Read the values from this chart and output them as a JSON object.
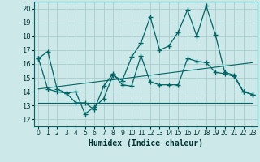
{
  "xlabel": "Humidex (Indice chaleur)",
  "ylabel": "",
  "xlim": [
    -0.5,
    23.5
  ],
  "ylim": [
    11.5,
    20.5
  ],
  "yticks": [
    12,
    13,
    14,
    15,
    16,
    17,
    18,
    19,
    20
  ],
  "xticks": [
    0,
    1,
    2,
    3,
    4,
    5,
    6,
    7,
    8,
    9,
    10,
    11,
    12,
    13,
    14,
    15,
    16,
    17,
    18,
    19,
    20,
    21,
    22,
    23
  ],
  "bg_color": "#cce8e8",
  "grid_color": "#aacccc",
  "line_color": "#006666",
  "line1_x": [
    0,
    1,
    2,
    3,
    4,
    5,
    6,
    7,
    8,
    9,
    10,
    11,
    12,
    13,
    14,
    15,
    16,
    17,
    18,
    19,
    20,
    21,
    22,
    23
  ],
  "line1_y": [
    16.4,
    16.9,
    14.2,
    13.9,
    14.0,
    12.4,
    12.9,
    13.5,
    15.2,
    14.8,
    16.5,
    17.5,
    19.4,
    17.0,
    17.3,
    18.3,
    19.9,
    18.0,
    20.2,
    18.1,
    15.4,
    15.2,
    14.0,
    13.8
  ],
  "line2_x": [
    0,
    1,
    2,
    3,
    4,
    5,
    6,
    7,
    8,
    9,
    10,
    11,
    12,
    13,
    14,
    15,
    16,
    17,
    18,
    19,
    20,
    21,
    22,
    23
  ],
  "line2_y": [
    16.4,
    14.2,
    14.0,
    13.9,
    13.2,
    13.2,
    12.7,
    14.4,
    15.3,
    14.5,
    14.4,
    16.6,
    14.7,
    14.5,
    14.5,
    14.5,
    16.4,
    16.2,
    16.1,
    15.4,
    15.3,
    15.1,
    14.0,
    13.8
  ],
  "line3_x": [
    0,
    23
  ],
  "line3_y": [
    13.2,
    13.2
  ],
  "line4_x": [
    0,
    23
  ],
  "line4_y": [
    14.2,
    16.1
  ]
}
